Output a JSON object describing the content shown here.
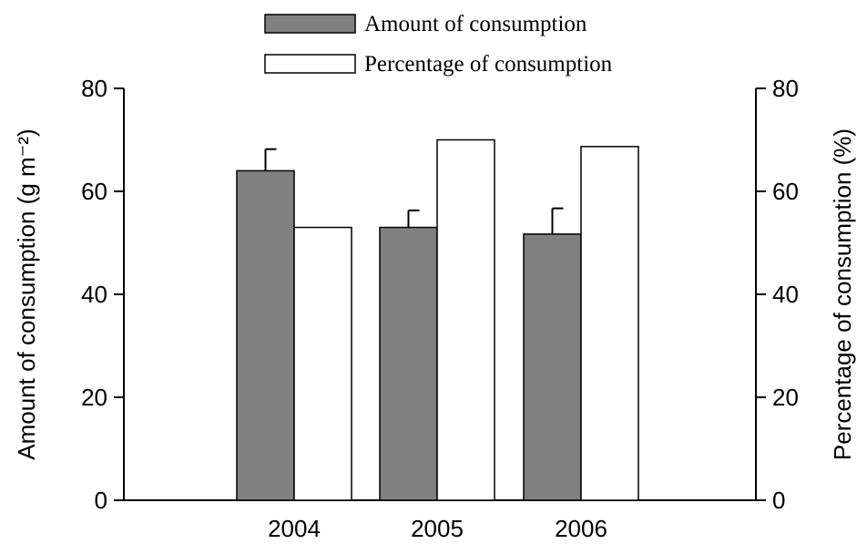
{
  "chart_data": {
    "type": "bar",
    "categories": [
      "2004",
      "2005",
      "2006"
    ],
    "series": [
      {
        "name": "Amount of consumption",
        "color": "#808080",
        "values": [
          64,
          53,
          51.7
        ],
        "errors": [
          4.2,
          3.3,
          5
        ]
      },
      {
        "name": "Percentage of consumption",
        "color": "#ffffff",
        "values": [
          53,
          70,
          68.7
        ],
        "axis": "y2"
      }
    ],
    "ylabel": "Amount of consumption (g m⁻²)",
    "y2label": "Percentage of consumption  (%)",
    "ylim": [
      0,
      80
    ],
    "yticks": [
      0,
      20,
      40,
      60,
      80
    ],
    "y2lim": [
      0,
      80
    ],
    "y2ticks": [
      0,
      20,
      40,
      60,
      80
    ],
    "legend": "top"
  }
}
